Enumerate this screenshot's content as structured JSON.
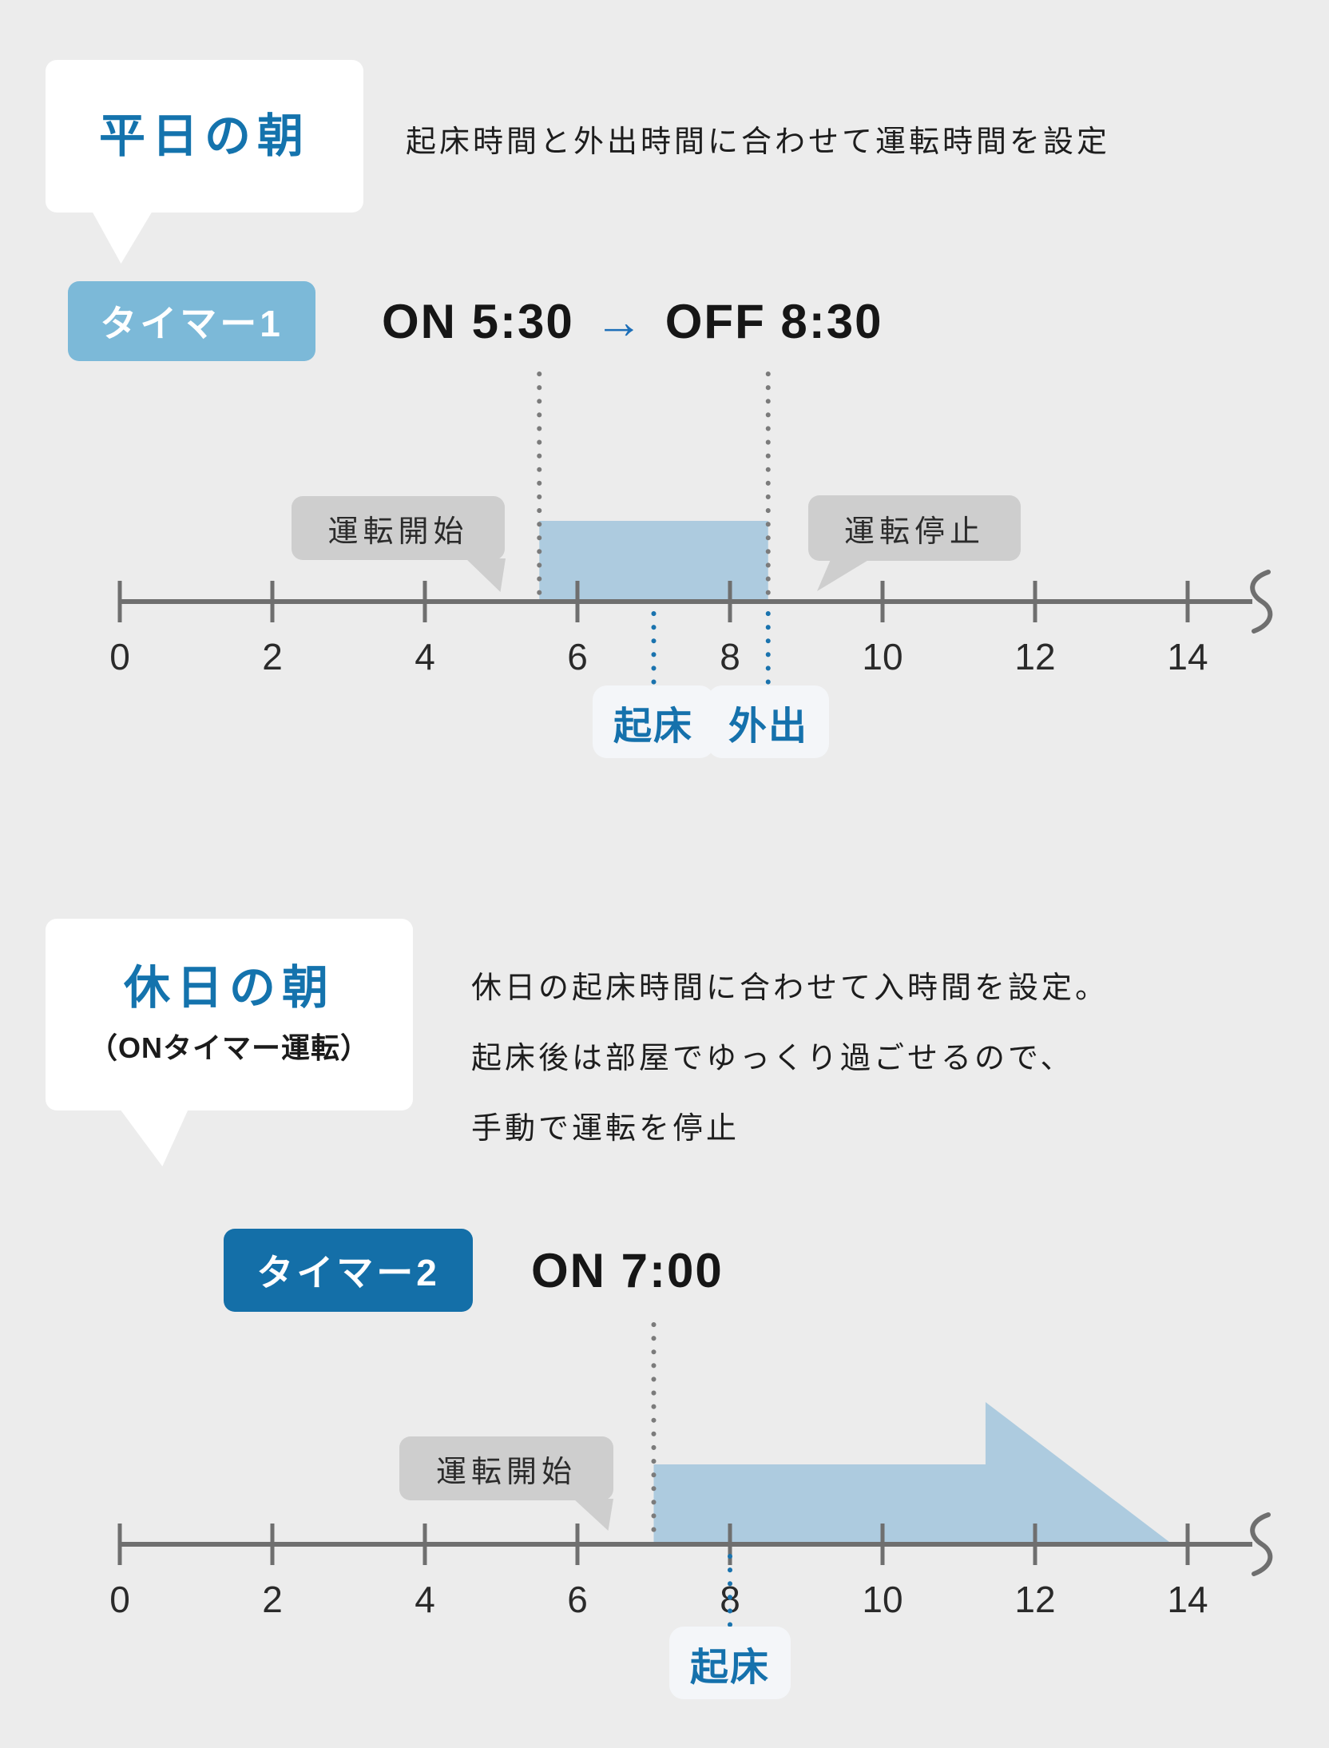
{
  "colors": {
    "background": "#ececec",
    "accent_blue": "#1473ad",
    "badge_light_blue": "#7cb9d8",
    "badge_dark_blue": "#146fa8",
    "region_fill": "#adcbdf",
    "bubble_gray": "#cecece",
    "axis_gray": "#6f6f6f",
    "guide_dot_gray": "#7b7b7b",
    "marker_dot_blue": "#1a73ae",
    "tick_label_color": "#2a2a2a"
  },
  "section1": {
    "callout": "平日の朝",
    "description": "起床時間と外出時間に合わせて運転時間を設定",
    "badge": "タイマー1",
    "schedule": {
      "on": "ON 5:30",
      "arrow": "→",
      "off": "OFF 8:30"
    },
    "start_bubble": "運転開始",
    "stop_bubble": "運転停止"
  },
  "section2": {
    "callout": "休日の朝",
    "callout_sub": "（ONタイマー運転）",
    "description_lines": [
      "休日の起床時間に合わせて入時間を設定。",
      "起床後は部屋でゆっくり過ごせるので、",
      "手動で運転を停止"
    ],
    "badge": "タイマー2",
    "schedule": {
      "on": "ON 7:00"
    },
    "start_bubble": "運転開始"
  },
  "chart_data": [
    {
      "type": "timeline",
      "name": "weekday-morning-timer1",
      "unit": "hour",
      "ticks": [
        0,
        2,
        4,
        6,
        8,
        10,
        12,
        14
      ],
      "axis_range": [
        0,
        15
      ],
      "axis_break_at_end": true,
      "on_time": 5.5,
      "off_time": 8.5,
      "region": {
        "shape": "rect",
        "start": 5.5,
        "end": 8.5
      },
      "guides": [
        5.5,
        8.5
      ],
      "markers": [
        {
          "time": 7,
          "label": "起床"
        },
        {
          "time": 8.5,
          "label": "外出"
        }
      ]
    },
    {
      "type": "timeline",
      "name": "holiday-morning-timer2",
      "unit": "hour",
      "ticks": [
        0,
        2,
        4,
        6,
        8,
        10,
        12,
        14
      ],
      "axis_range": [
        0,
        15
      ],
      "axis_break_at_end": true,
      "on_time": 7,
      "region": {
        "shape": "arrow",
        "start": 7,
        "head_start": 11.35,
        "tip": 13.8
      },
      "guides": [
        7
      ],
      "markers": [
        {
          "time": 8,
          "label": "起床"
        }
      ]
    }
  ]
}
